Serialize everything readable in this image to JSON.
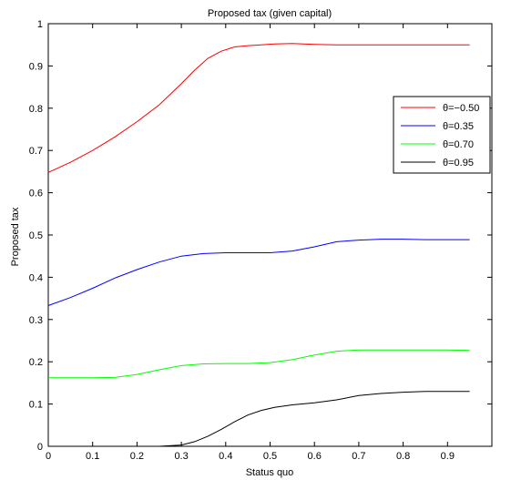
{
  "chart_data": {
    "type": "line",
    "title": "Proposed tax (given capital)",
    "xlabel": "Status quo",
    "ylabel": "Proposed tax",
    "xlim": [
      0,
      1
    ],
    "ylim": [
      0,
      1
    ],
    "xticks": [
      "0",
      "0.1",
      "0.2",
      "0.3",
      "0.4",
      "0.5",
      "0.6",
      "0.7",
      "0.8",
      "0.9"
    ],
    "yticks": [
      "0",
      "0.1",
      "0.2",
      "0.3",
      "0.4",
      "0.5",
      "0.6",
      "0.7",
      "0.8",
      "0.9",
      "1"
    ],
    "legend_position": "right",
    "series": [
      {
        "name": "θ=−0.50",
        "color": "#ff0000",
        "x": [
          0,
          0.05,
          0.1,
          0.15,
          0.2,
          0.25,
          0.3,
          0.33,
          0.36,
          0.39,
          0.42,
          0.45,
          0.48,
          0.51,
          0.55,
          0.6,
          0.65,
          0.7,
          0.75,
          0.8,
          0.85,
          0.9,
          0.95
        ],
        "y": [
          0.648,
          0.672,
          0.7,
          0.732,
          0.768,
          0.808,
          0.858,
          0.89,
          0.918,
          0.935,
          0.945,
          0.948,
          0.95,
          0.952,
          0.953,
          0.951,
          0.95,
          0.95,
          0.95,
          0.95,
          0.95,
          0.95,
          0.95
        ]
      },
      {
        "name": "θ=0.35",
        "color": "#0000ff",
        "x": [
          0,
          0.05,
          0.1,
          0.15,
          0.2,
          0.25,
          0.3,
          0.35,
          0.4,
          0.45,
          0.5,
          0.55,
          0.6,
          0.65,
          0.7,
          0.75,
          0.8,
          0.85,
          0.9,
          0.95
        ],
        "y": [
          0.333,
          0.352,
          0.374,
          0.398,
          0.418,
          0.436,
          0.45,
          0.456,
          0.458,
          0.458,
          0.458,
          0.462,
          0.472,
          0.484,
          0.488,
          0.49,
          0.49,
          0.489,
          0.489,
          0.489
        ]
      },
      {
        "name": "θ=0.70",
        "color": "#00ff00",
        "x": [
          0,
          0.05,
          0.1,
          0.15,
          0.2,
          0.25,
          0.3,
          0.35,
          0.4,
          0.45,
          0.5,
          0.55,
          0.6,
          0.65,
          0.7,
          0.75,
          0.8,
          0.85,
          0.9,
          0.95
        ],
        "y": [
          0.162,
          0.162,
          0.162,
          0.163,
          0.17,
          0.181,
          0.191,
          0.195,
          0.196,
          0.196,
          0.198,
          0.205,
          0.216,
          0.225,
          0.228,
          0.228,
          0.228,
          0.228,
          0.228,
          0.227
        ]
      },
      {
        "name": "θ=0.95",
        "color": "#000000",
        "x": [
          0,
          0.05,
          0.1,
          0.15,
          0.2,
          0.25,
          0.3,
          0.33,
          0.36,
          0.39,
          0.42,
          0.45,
          0.48,
          0.51,
          0.55,
          0.6,
          0.65,
          0.7,
          0.75,
          0.8,
          0.85,
          0.9,
          0.95
        ],
        "y": [
          0,
          0,
          0,
          0,
          0,
          0,
          0.003,
          0.011,
          0.024,
          0.04,
          0.058,
          0.074,
          0.085,
          0.092,
          0.098,
          0.103,
          0.11,
          0.12,
          0.125,
          0.128,
          0.13,
          0.13,
          0.13
        ]
      }
    ]
  }
}
